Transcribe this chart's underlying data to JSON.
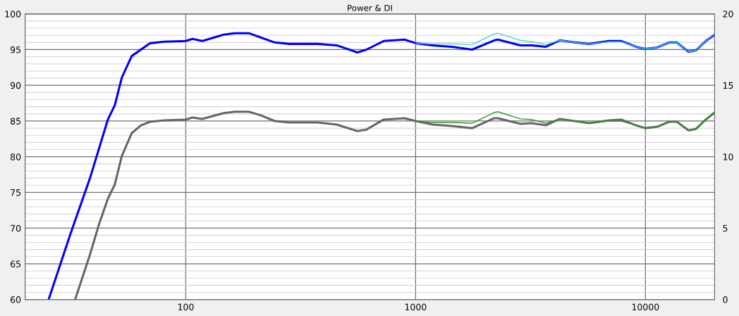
{
  "chart_data": {
    "type": "line",
    "title": "Power & DI",
    "log": "x",
    "xlim": [
      20,
      20000
    ],
    "xticks": [
      100,
      1000,
      10000
    ],
    "ylim": [
      60,
      100
    ],
    "yticks": [
      60,
      65,
      70,
      75,
      80,
      85,
      90,
      95,
      100
    ],
    "y2lim": [
      0,
      20
    ],
    "y2ticks": [
      0,
      5,
      10,
      15,
      20
    ],
    "grid": true,
    "marker": "none",
    "line_style": "solid",
    "series": [
      {
        "color": "#0000ff",
        "x": [
          25.3,
          31.5,
          38.3,
          45.8,
          49.1,
          52.7,
          58.2,
          70,
          80.6,
          100,
          107,
          118,
          146,
          163,
          188,
          212,
          244,
          282,
          374,
          454,
          558,
          611,
          726,
          894,
          1003,
          1186,
          1440,
          1760,
          2200,
          2280,
          2860,
          3200,
          3690,
          4240,
          4920,
          5700,
          6940,
          7850,
          9100,
          10000,
          11250,
          12700,
          13700,
          15400,
          16600,
          18300,
          20000
        ],
        "values": [
          60,
          69.2,
          77.0,
          85.2,
          87.2,
          91.1,
          94.1,
          95.9,
          96.1,
          96.2,
          96.5,
          96.2,
          97.1,
          97.3,
          97.3,
          96.7,
          96.0,
          95.8,
          95.8,
          95.6,
          94.6,
          95.0,
          96.2,
          96.4,
          95.9,
          95.6,
          95.4,
          95.0,
          96.3,
          96.4,
          95.6,
          95.6,
          95.4,
          96.3,
          96.0,
          95.8,
          96.2,
          96.2,
          95.4,
          95.1,
          95.3,
          96.0,
          96.0,
          94.7,
          94.9,
          96.2,
          97.1
        ]
      },
      {
        "color": "#33d6d6",
        "x": [
          1003,
          1186,
          1440,
          1760,
          2200,
          2280,
          2860,
          3200,
          3690,
          4240,
          4920,
          5700,
          6940,
          7850,
          9100,
          10000,
          11250,
          12700,
          13700,
          15400,
          16600,
          18300,
          20000
        ],
        "values": [
          95.9,
          95.8,
          95.8,
          95.7,
          97.2,
          97.3,
          96.3,
          96.1,
          95.7,
          96.3,
          96.0,
          95.8,
          96.1,
          96.1,
          95.4,
          95.1,
          95.3,
          96.0,
          96.0,
          94.7,
          94.9,
          96.2,
          97.2
        ]
      },
      {
        "color": "#666666",
        "x": [
          33.0,
          38.3,
          41.8,
          45.8,
          49.1,
          52.7,
          58.2,
          63.8,
          70,
          80.6,
          100,
          107,
          118,
          146,
          163,
          188,
          212,
          244,
          282,
          374,
          454,
          558,
          611,
          726,
          894,
          1003,
          1186,
          1440,
          1760,
          2200,
          2280,
          2860,
          3200,
          3690,
          4240,
          4920,
          5700,
          6940,
          7850,
          9100,
          10000,
          11250,
          12700,
          13700,
          15400,
          16600,
          18300,
          20000
        ],
        "values": [
          60,
          66.3,
          70.4,
          74.1,
          76.1,
          80.1,
          83.3,
          84.4,
          84.9,
          85.1,
          85.2,
          85.5,
          85.3,
          86.1,
          86.3,
          86.3,
          85.8,
          85.0,
          84.8,
          84.8,
          84.5,
          83.6,
          83.8,
          85.2,
          85.4,
          85.0,
          84.5,
          84.3,
          84.0,
          85.4,
          85.4,
          84.6,
          84.7,
          84.4,
          85.3,
          85.0,
          84.7,
          85.1,
          85.2,
          84.4,
          84.0,
          84.2,
          84.9,
          84.9,
          83.7,
          83.9,
          85.2,
          86.2
        ]
      },
      {
        "color": "#2a9a2a",
        "x": [
          1003,
          1186,
          1440,
          1760,
          2200,
          2280,
          2860,
          3200,
          3690,
          4240,
          4920,
          5700,
          6940,
          7850,
          9100,
          10000,
          11250,
          12700,
          13700,
          15400,
          16600,
          18300,
          20000
        ],
        "values": [
          85.0,
          84.8,
          84.8,
          84.7,
          86.2,
          86.3,
          85.3,
          85.2,
          84.7,
          85.3,
          85.0,
          84.7,
          85.0,
          85.0,
          84.4,
          84.0,
          84.2,
          84.9,
          84.9,
          83.7,
          83.9,
          85.2,
          86.3
        ]
      }
    ]
  }
}
